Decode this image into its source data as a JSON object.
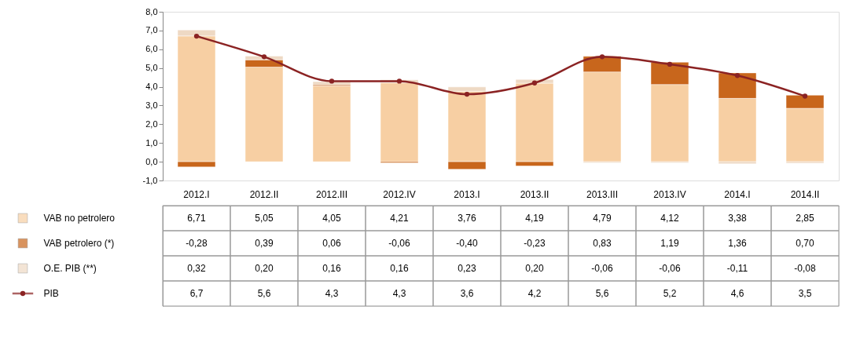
{
  "chart_data": {
    "type": "bar",
    "stacked": true,
    "categories": [
      "2012.I",
      "2012.II",
      "2012.III",
      "2012.IV",
      "2013.I",
      "2013.II",
      "2013.III",
      "2013.IV",
      "2014.I",
      "2014.II"
    ],
    "series": [
      {
        "name": "VAB no petrolero",
        "color": "#f7cfa3",
        "values": [
          6.71,
          5.05,
          4.05,
          4.21,
          3.76,
          4.19,
          4.79,
          4.12,
          3.38,
          2.85
        ],
        "value_labels": [
          "6,71",
          "5,05",
          "4,05",
          "4,21",
          "3,76",
          "4,19",
          "4,79",
          "4,12",
          "3,38",
          "2,85"
        ]
      },
      {
        "name": "VAB petrolero (*)",
        "color": "#c8661c",
        "values": [
          -0.28,
          0.39,
          0.06,
          -0.06,
          -0.4,
          -0.23,
          0.83,
          1.19,
          1.36,
          0.7
        ],
        "value_labels": [
          "-0,28",
          "0,39",
          "0,06",
          "-0,06",
          "-0,40",
          "-0,23",
          "0,83",
          "1,19",
          "1,36",
          "0,70"
        ]
      },
      {
        "name": "O.E. PIB (**)",
        "color": "#eed9c4",
        "values": [
          0.32,
          0.2,
          0.16,
          0.16,
          0.23,
          0.2,
          -0.06,
          -0.06,
          -0.11,
          -0.08
        ],
        "value_labels": [
          "0,32",
          "0,20",
          "0,16",
          "0,16",
          "0,23",
          "0,20",
          "-0,06",
          "-0,06",
          "-0,11",
          "-0,08"
        ]
      },
      {
        "name": "PIB",
        "type": "line",
        "color": "#8b2323",
        "marker": "circle",
        "values": [
          6.7,
          5.6,
          4.3,
          4.3,
          3.6,
          4.2,
          5.6,
          5.2,
          4.6,
          3.5
        ],
        "value_labels": [
          "6,7",
          "5,6",
          "4,3",
          "4,3",
          "3,6",
          "4,2",
          "5,6",
          "5,2",
          "4,6",
          "3,5"
        ]
      }
    ],
    "ylim": [
      -1,
      8
    ],
    "yticks": [
      {
        "value": -1,
        "label": "-1,0"
      },
      {
        "value": 0,
        "label": "0,0"
      },
      {
        "value": 1,
        "label": "1,0"
      },
      {
        "value": 2,
        "label": "2,0"
      },
      {
        "value": 3,
        "label": "3,0"
      },
      {
        "value": 4,
        "label": "4,0"
      },
      {
        "value": 5,
        "label": "5,0"
      },
      {
        "value": 6,
        "label": "6,0"
      },
      {
        "value": 7,
        "label": "7,0"
      },
      {
        "value": 8,
        "label": "8,0"
      }
    ],
    "legend": "bottom",
    "grid": false
  }
}
